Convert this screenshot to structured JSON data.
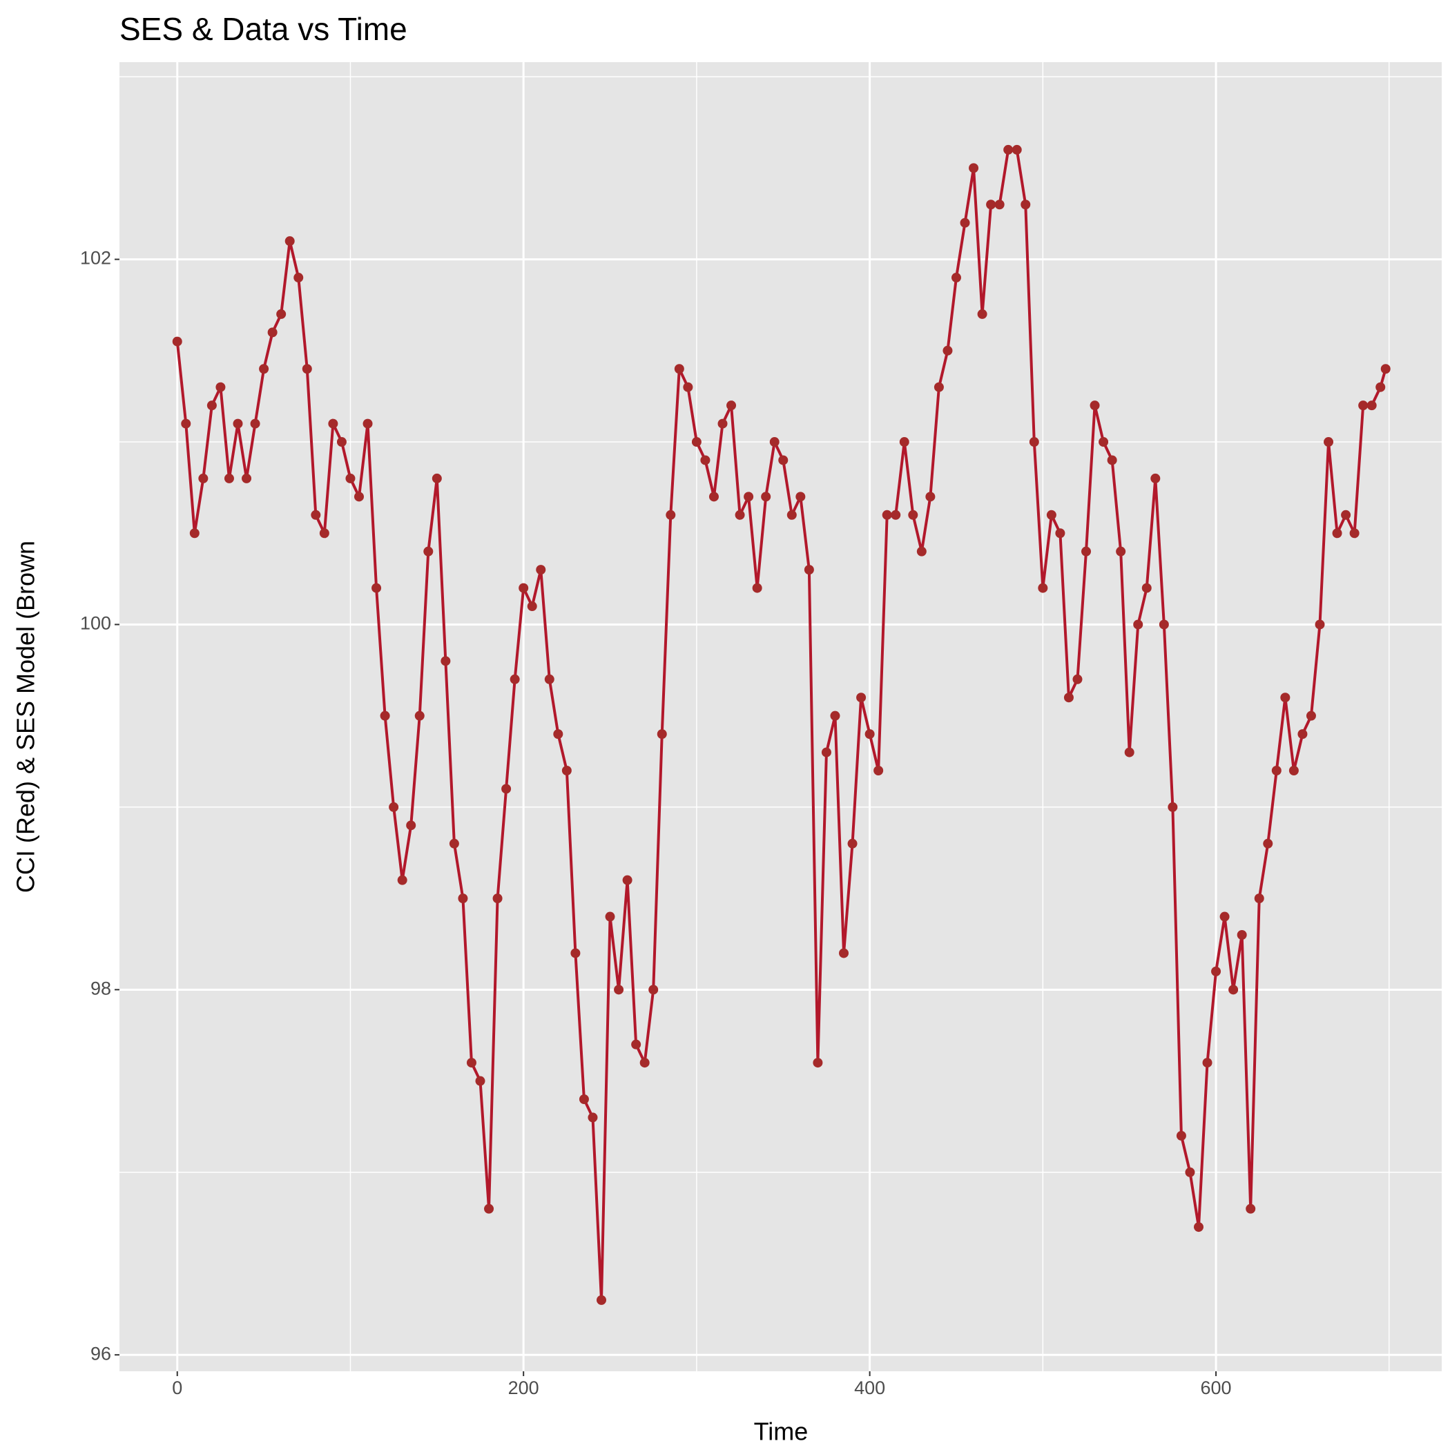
{
  "chart_data": {
    "type": "line",
    "title": "SES & Data vs Time",
    "x_label": "Time",
    "y_label": "CCI (Red) & SES Model (Brown",
    "x": [
      0,
      5,
      10,
      15,
      20,
      25,
      30,
      35,
      40,
      45,
      50,
      55,
      60,
      65,
      70,
      75,
      80,
      85,
      90,
      95,
      100,
      105,
      110,
      115,
      120,
      125,
      130,
      135,
      140,
      145,
      150,
      155,
      160,
      165,
      170,
      175,
      180,
      185,
      190,
      195,
      200,
      205,
      210,
      215,
      220,
      225,
      230,
      235,
      240,
      245,
      250,
      255,
      260,
      265,
      270,
      275,
      280,
      285,
      290,
      295,
      300,
      305,
      310,
      315,
      320,
      325,
      330,
      335,
      340,
      345,
      350,
      355,
      360,
      365,
      370,
      375,
      380,
      385,
      390,
      395,
      400,
      405,
      410,
      415,
      420,
      425,
      430,
      435,
      440,
      445,
      450,
      455,
      460,
      465,
      470,
      475,
      480,
      485,
      490,
      495,
      500,
      505,
      510,
      515,
      520,
      525,
      530,
      535,
      540,
      545,
      550,
      555,
      560,
      565,
      570,
      575,
      580,
      585,
      590,
      595,
      600,
      605,
      610,
      615,
      620,
      625,
      630,
      635,
      640,
      645,
      650,
      655,
      660,
      665,
      670,
      675,
      680,
      685,
      690,
      695,
      698
    ],
    "series": [
      {
        "color": "#a52a2a",
        "line_color": "#b2182b",
        "values": [
          101.55,
          101.1,
          100.5,
          100.8,
          101.2,
          101.3,
          100.8,
          101.1,
          100.8,
          101.1,
          101.4,
          101.6,
          101.7,
          102.1,
          101.9,
          101.4,
          100.6,
          100.5,
          101.1,
          101.0,
          100.8,
          100.7,
          101.1,
          100.2,
          99.5,
          99.0,
          98.6,
          98.9,
          99.5,
          100.4,
          100.8,
          99.8,
          98.8,
          98.5,
          97.6,
          97.5,
          96.8,
          98.5,
          99.1,
          99.7,
          100.2,
          100.1,
          100.3,
          99.7,
          99.4,
          99.2,
          98.2,
          97.4,
          97.3,
          96.3,
          98.4,
          98.0,
          98.6,
          97.7,
          97.6,
          98.0,
          99.4,
          100.6,
          101.4,
          101.3,
          101.0,
          100.9,
          100.7,
          101.1,
          101.2,
          100.6,
          100.7,
          100.2,
          100.7,
          101.0,
          100.9,
          100.6,
          100.7,
          100.3,
          97.6,
          99.3,
          99.5,
          98.2,
          98.8,
          99.6,
          99.4,
          99.2,
          100.6,
          100.6,
          101.0,
          100.6,
          100.4,
          100.7,
          101.3,
          101.5,
          101.9,
          102.2,
          102.5,
          101.7,
          102.3,
          102.3,
          102.6,
          102.6,
          102.3,
          101.0,
          100.2,
          100.6,
          100.5,
          99.6,
          99.7,
          100.4,
          101.2,
          101.0,
          100.9,
          100.4,
          99.3,
          100.0,
          100.2,
          100.8,
          100.0,
          99.0,
          97.2,
          97.0,
          96.7,
          97.6,
          98.1,
          98.4,
          98.0,
          98.3,
          96.8,
          98.5,
          98.8,
          99.2,
          99.6,
          99.2,
          99.4,
          99.5,
          100.0,
          101.0,
          100.5,
          100.6,
          100.5,
          101.2,
          101.2,
          101.3,
          101.4
        ]
      }
    ],
    "xlim": [
      -33.4,
      730.4
    ],
    "xticks": [
      0,
      200,
      400,
      600
    ],
    "minor_xticks": [
      100,
      300,
      500,
      700
    ],
    "ylim": [
      95.91,
      103.08
    ],
    "yticks": [
      96,
      98,
      100,
      102
    ],
    "minor_yticks": [
      97,
      99,
      101,
      103
    ],
    "grid": true
  }
}
